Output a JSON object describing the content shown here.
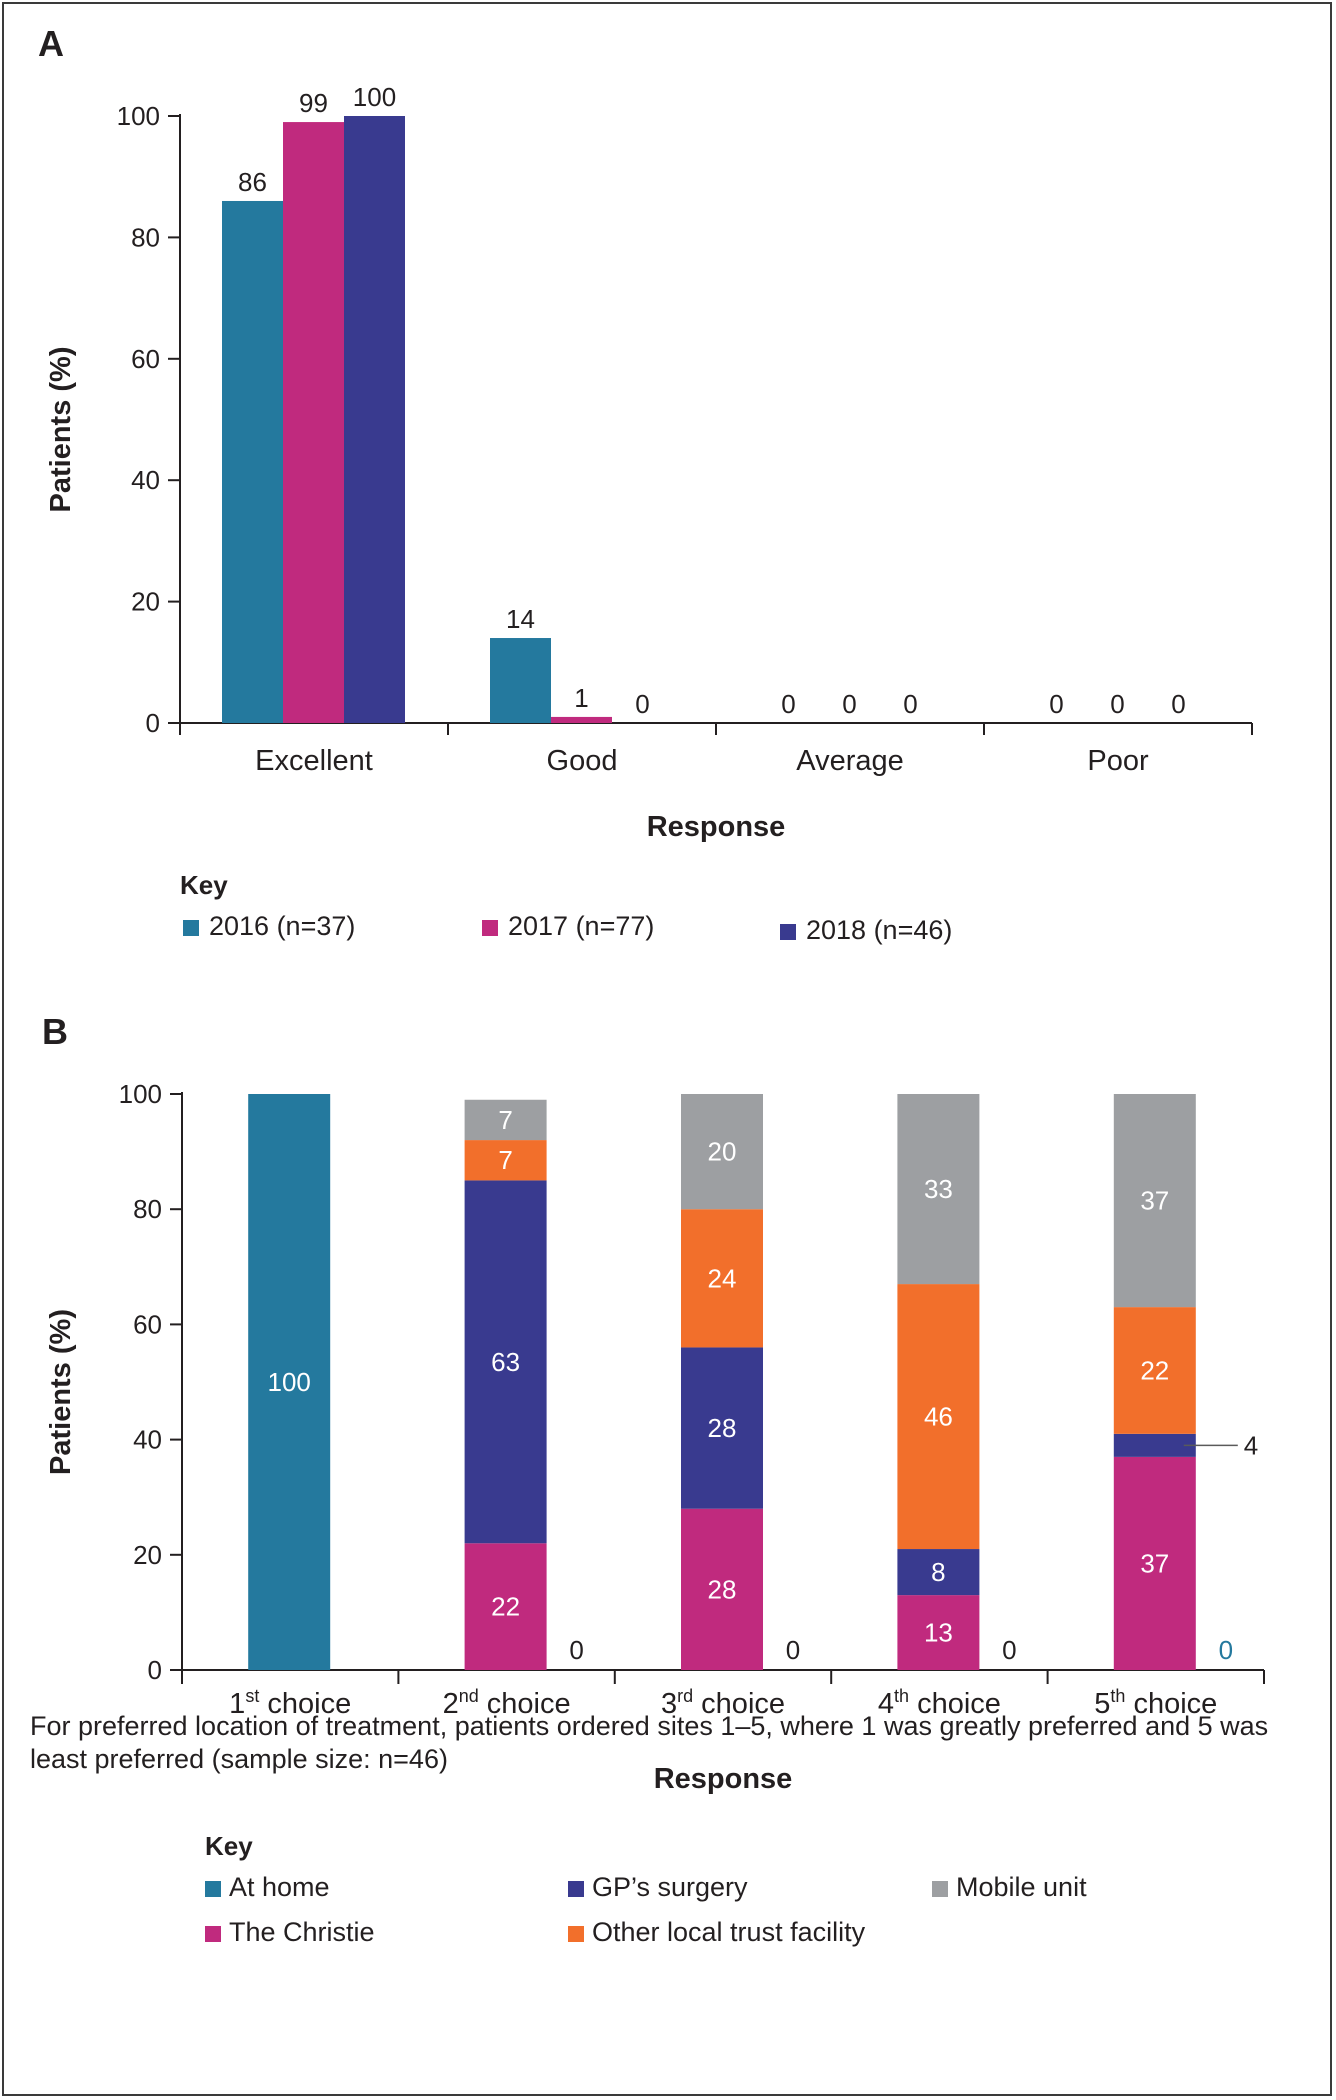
{
  "charts": [
    {
      "panel": "A",
      "chart_data": {
        "type": "bar",
        "categories": [
          "Excellent",
          "Good",
          "Average",
          "Poor"
        ],
        "series": [
          {
            "name": "2016 (n=37)",
            "color": "#24799e",
            "values": [
              86,
              14,
              0,
              0
            ]
          },
          {
            "name": "2017 (n=77)",
            "color": "#c02a7e",
            "values": [
              99,
              1,
              0,
              0
            ]
          },
          {
            "name": "2018 (n=46)",
            "color": "#393a8f",
            "values": [
              100,
              0,
              0,
              0
            ]
          }
        ],
        "xlabel": "Response",
        "ylabel": "Patients (%)",
        "ylim": [
          0,
          100
        ],
        "yticks": [
          0,
          20,
          40,
          60,
          80,
          100
        ],
        "grid": false,
        "legend_title": "Key",
        "legend_placement": "bottom"
      }
    },
    {
      "panel": "B",
      "chart_data": {
        "type": "bar",
        "stacked": true,
        "categories": [
          "1st choice",
          "2nd choice",
          "3rd choice",
          "4th choice",
          "5th choice"
        ],
        "category_parts": [
          {
            "num": "1",
            "sup": "st",
            "word": "choice"
          },
          {
            "num": "2",
            "sup": "nd",
            "word": "choice"
          },
          {
            "num": "3",
            "sup": "rd",
            "word": "choice"
          },
          {
            "num": "4",
            "sup": "th",
            "word": "choice"
          },
          {
            "num": "5",
            "sup": "th",
            "word": "choice"
          }
        ],
        "series": [
          {
            "name": "The Christie",
            "color": "#c02a7e",
            "values": [
              0,
              22,
              28,
              13,
              37
            ]
          },
          {
            "name": "GP’s surgery",
            "color": "#393a8f",
            "values": [
              0,
              63,
              28,
              8,
              4
            ]
          },
          {
            "name": "Other local trust facility",
            "color": "#f26f2b",
            "values": [
              0,
              7,
              24,
              46,
              22
            ]
          },
          {
            "name": "Mobile unit",
            "color": "#9d9fa2",
            "values": [
              0,
              7,
              20,
              33,
              37
            ]
          },
          {
            "name": "At home",
            "color": "#24799e",
            "values": [
              100,
              0,
              0,
              0,
              0
            ]
          }
        ],
        "zero_labels": [
          {
            "category": "2nd choice",
            "value": "0"
          },
          {
            "category": "3rd choice",
            "value": "0"
          },
          {
            "category": "4th choice",
            "value": "0"
          },
          {
            "category": "5th choice",
            "value": "0"
          }
        ],
        "xlabel": "Response",
        "ylabel": "Patients (%)",
        "ylim": [
          0,
          100
        ],
        "yticks": [
          0,
          20,
          40,
          60,
          80,
          100
        ],
        "grid": false,
        "legend_title": "Key",
        "legend_order": [
          "At home",
          "GP’s surgery",
          "Mobile unit",
          "The Christie",
          "Other local trust facility"
        ],
        "legend_placement": "bottom"
      }
    }
  ],
  "footnote": "For preferred location of treatment, patients ordered sites 1–5, where 1 was greatly preferred and 5 was least preferred (sample size: n=46)"
}
